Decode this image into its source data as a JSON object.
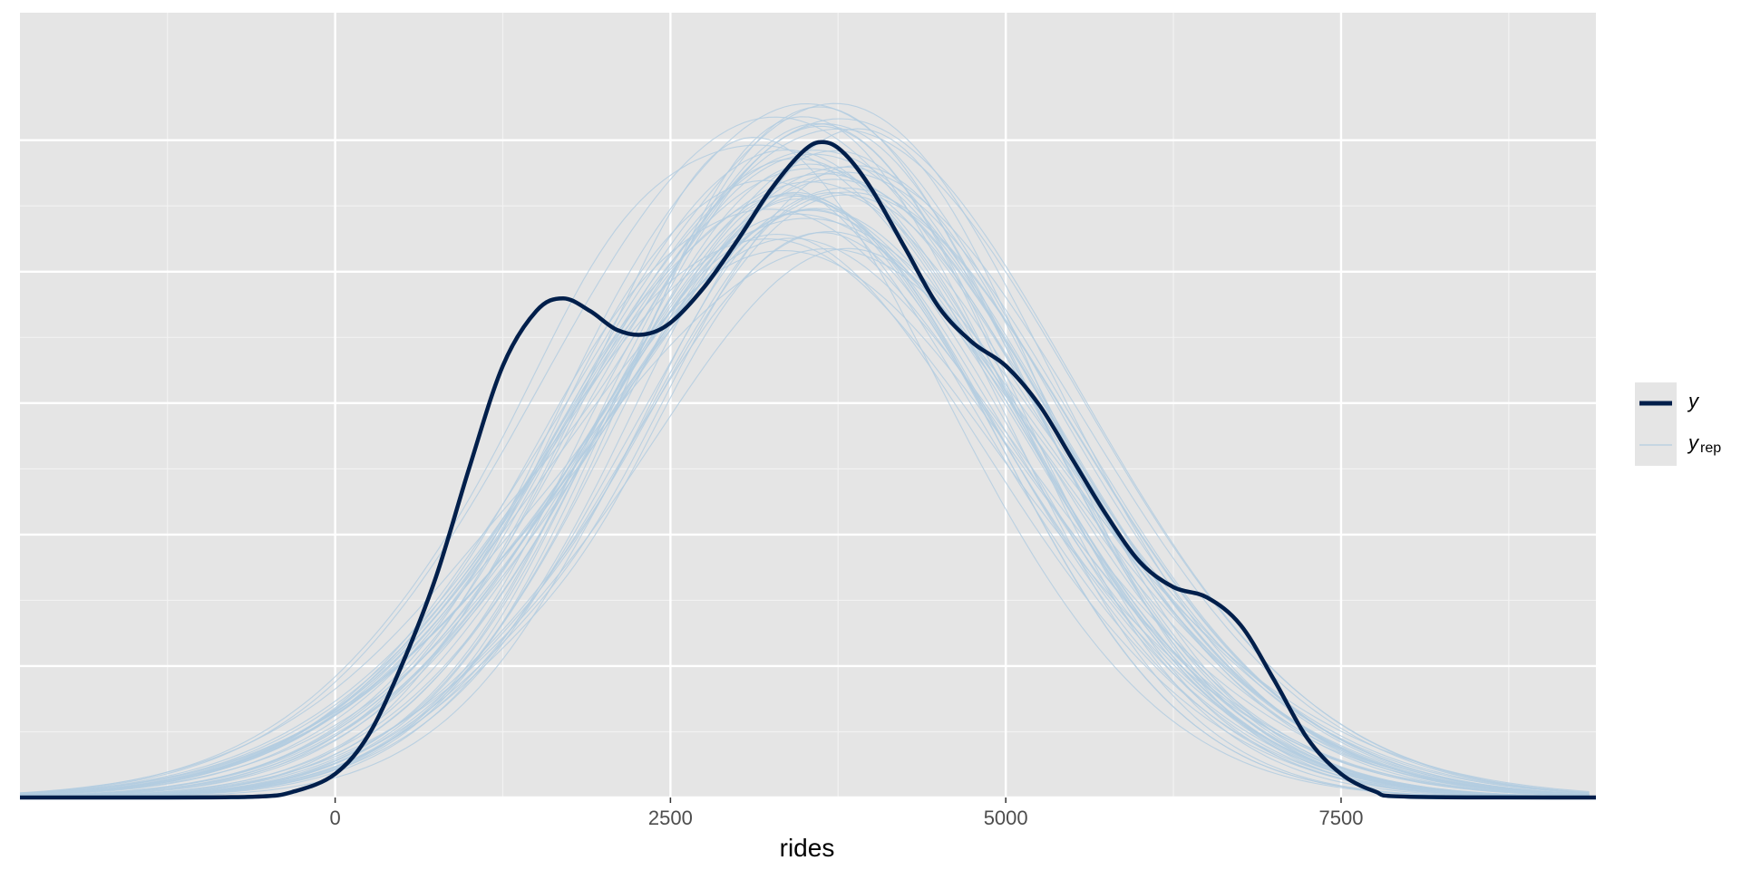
{
  "chart_data": {
    "type": "line",
    "xlabel": "rides",
    "ylabel": "",
    "title": "",
    "xlim": [
      -2350,
      9400
    ],
    "ylim": [
      0,
      1.0
    ],
    "x_ticks": [
      0,
      2500,
      5000,
      7500
    ],
    "x_tick_labels": [
      "0",
      "2500",
      "5000",
      "7500"
    ],
    "grid": true,
    "y_tick_labels_shown": false,
    "legend": {
      "position": "right",
      "entries": [
        {
          "key": "y",
          "label": "y",
          "subscript": ""
        },
        {
          "key": "yrep",
          "label": "y",
          "subscript": "rep"
        }
      ]
    },
    "series": [
      {
        "name": "y",
        "color": "#011f4b",
        "points": [
          [
            -2350,
            0.0
          ],
          [
            -1500,
            0.0
          ],
          [
            -600,
            0.001
          ],
          [
            -300,
            0.008
          ],
          [
            0,
            0.03
          ],
          [
            250,
            0.08
          ],
          [
            500,
            0.17
          ],
          [
            750,
            0.28
          ],
          [
            1000,
            0.42
          ],
          [
            1250,
            0.55
          ],
          [
            1500,
            0.62
          ],
          [
            1700,
            0.636
          ],
          [
            1900,
            0.62
          ],
          [
            2100,
            0.596
          ],
          [
            2300,
            0.59
          ],
          [
            2500,
            0.605
          ],
          [
            2750,
            0.65
          ],
          [
            3000,
            0.71
          ],
          [
            3250,
            0.775
          ],
          [
            3500,
            0.825
          ],
          [
            3650,
            0.835
          ],
          [
            3800,
            0.82
          ],
          [
            4000,
            0.775
          ],
          [
            4250,
            0.7
          ],
          [
            4500,
            0.625
          ],
          [
            4750,
            0.58
          ],
          [
            5000,
            0.55
          ],
          [
            5250,
            0.5
          ],
          [
            5500,
            0.43
          ],
          [
            5750,
            0.36
          ],
          [
            6000,
            0.3
          ],
          [
            6250,
            0.268
          ],
          [
            6500,
            0.255
          ],
          [
            6750,
            0.22
          ],
          [
            7000,
            0.15
          ],
          [
            7250,
            0.075
          ],
          [
            7500,
            0.03
          ],
          [
            7750,
            0.008
          ],
          [
            8000,
            0.001
          ],
          [
            9400,
            0.0
          ]
        ]
      },
      {
        "name": "yrep",
        "color": "#b3cde0",
        "count": 50,
        "typical_mean": 3550,
        "typical_sd": 1620,
        "typical_peak": 0.79
      }
    ]
  }
}
